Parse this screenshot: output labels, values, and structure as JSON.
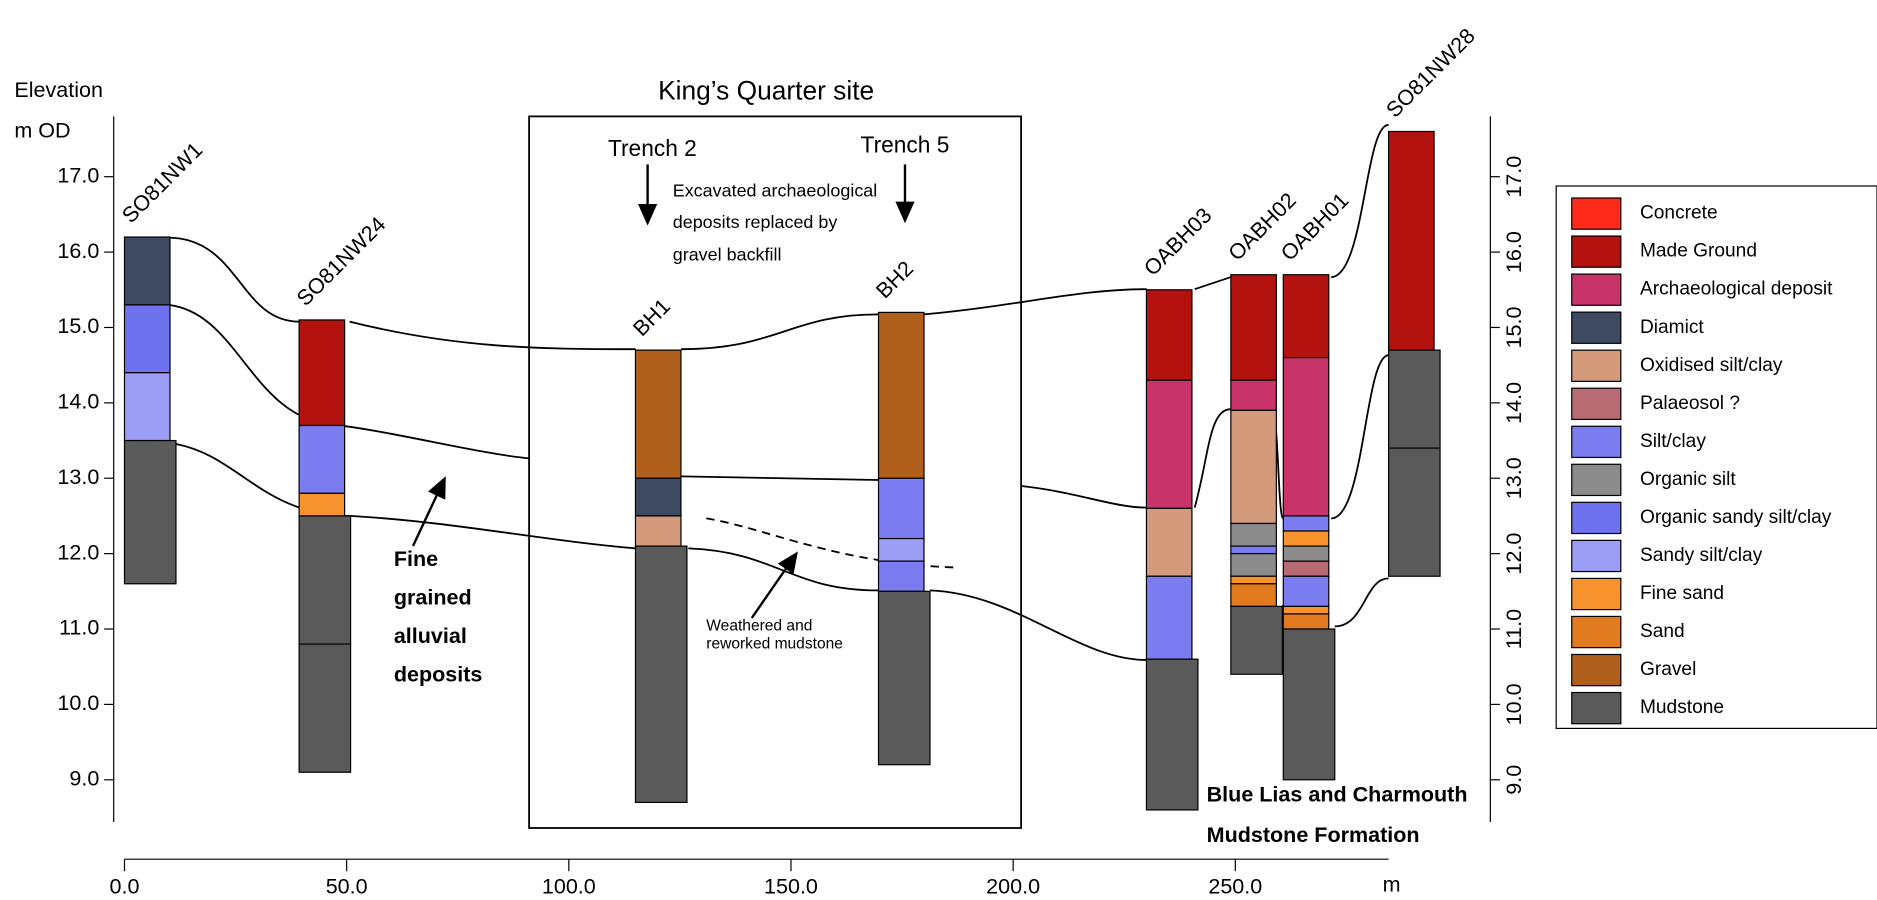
{
  "y_axis": {
    "title": [
      "Elevation",
      "m OD"
    ],
    "ylim": [
      8.44,
      17.8
    ],
    "yticks": [
      {
        "value": 9,
        "label": "9.0"
      },
      {
        "value": 10,
        "label": "10.0"
      },
      {
        "value": 11,
        "label": "11.0"
      },
      {
        "value": 12,
        "label": "12.0"
      },
      {
        "value": 13,
        "label": "13.0"
      },
      {
        "value": 14,
        "label": "14.0"
      },
      {
        "value": 15,
        "label": "15.0"
      },
      {
        "value": 16,
        "label": "16.0"
      },
      {
        "value": 17,
        "label": "17.0"
      }
    ],
    "y2lim": [
      8.44,
      17.8
    ],
    "y2ticks": [
      {
        "value": 9,
        "label": "9.0"
      },
      {
        "value": 10,
        "label": "10.0"
      },
      {
        "value": 11,
        "label": "11.0"
      },
      {
        "value": 12,
        "label": "12.0"
      },
      {
        "value": 13,
        "label": "13.0"
      },
      {
        "value": 14,
        "label": "14.0"
      },
      {
        "value": 15,
        "label": "15.0"
      },
      {
        "value": 16,
        "label": "16.0"
      },
      {
        "value": 17,
        "label": "17.0"
      }
    ]
  },
  "x_axis": {
    "xlim": [
      0,
      284.5
    ],
    "xticks": [
      {
        "value": 0,
        "label": "0.0"
      },
      {
        "value": 50,
        "label": "50.0"
      },
      {
        "value": 100,
        "label": "100.0"
      },
      {
        "value": 150,
        "label": "150.0"
      },
      {
        "value": 200,
        "label": "200.0"
      },
      {
        "value": 250,
        "label": "250.0"
      }
    ],
    "unit": "m"
  },
  "site": {
    "title": "King’s Quarter site",
    "trenches": [
      "Trench 2",
      "Trench 5"
    ],
    "note": [
      "Excavated archaeological",
      "deposits replaced by",
      "gravel backfill"
    ]
  },
  "boreholes": [
    {
      "name": "SO81NW1",
      "x": 0,
      "layers": [
        {
          "lithology": "Diamict",
          "top": 16.2,
          "bottom": 15.3
        },
        {
          "lithology": "Organic sandy silt/clay",
          "top": 15.3,
          "bottom": 14.4
        },
        {
          "lithology": "Sandy silt/clay",
          "top": 14.4,
          "bottom": 13.5
        },
        {
          "lithology": "Mudstone",
          "top": 13.5,
          "bottom": 11.6
        }
      ]
    },
    {
      "name": "SO81NW24",
      "x": 39.3,
      "layers": [
        {
          "lithology": "Made Ground",
          "top": 15.1,
          "bottom": 13.7
        },
        {
          "lithology": "Silt/clay",
          "top": 13.7,
          "bottom": 12.8
        },
        {
          "lithology": "Fine sand",
          "top": 12.8,
          "bottom": 12.5
        },
        {
          "lithology": "Mudstone",
          "top": 12.5,
          "bottom": 10.8
        },
        {
          "lithology": "Mudstone",
          "top": 10.8,
          "bottom": 9.1
        }
      ]
    },
    {
      "name": "BH1",
      "x": 115,
      "layers": [
        {
          "lithology": "Gravel",
          "top": 14.7,
          "bottom": 13.0
        },
        {
          "lithology": "Diamict",
          "top": 13.0,
          "bottom": 12.5
        },
        {
          "lithology": "Oxidised silt/clay",
          "top": 12.5,
          "bottom": 12.1
        },
        {
          "lithology": "Mudstone",
          "top": 12.1,
          "bottom": 8.7
        }
      ]
    },
    {
      "name": "BH2",
      "x": 169.7,
      "layers": [
        {
          "lithology": "Gravel",
          "top": 15.2,
          "bottom": 13.0
        },
        {
          "lithology": "Silt/clay",
          "top": 13.0,
          "bottom": 12.2
        },
        {
          "lithology": "Sandy silt/clay",
          "top": 12.2,
          "bottom": 11.9
        },
        {
          "lithology": "Silt/clay",
          "top": 11.9,
          "bottom": 11.5
        },
        {
          "lithology": "Mudstone",
          "top": 11.5,
          "bottom": 9.2
        }
      ]
    },
    {
      "name": "OABH03",
      "x": 230,
      "layers": [
        {
          "lithology": "Made Ground",
          "top": 15.5,
          "bottom": 14.3
        },
        {
          "lithology": "Archaeological deposit",
          "top": 14.3,
          "bottom": 12.6
        },
        {
          "lithology": "Oxidised silt/clay",
          "top": 12.6,
          "bottom": 11.7
        },
        {
          "lithology": "Silt/clay",
          "top": 11.7,
          "bottom": 10.6
        },
        {
          "lithology": "Mudstone",
          "top": 10.6,
          "bottom": 8.6
        }
      ]
    },
    {
      "name": "OABH02",
      "x": 249,
      "layers": [
        {
          "lithology": "Made Ground",
          "top": 15.7,
          "bottom": 14.3
        },
        {
          "lithology": "Archaeological deposit",
          "top": 14.3,
          "bottom": 13.9
        },
        {
          "lithology": "Oxidised silt/clay",
          "top": 13.9,
          "bottom": 12.4
        },
        {
          "lithology": "Organic silt",
          "top": 12.4,
          "bottom": 12.1
        },
        {
          "lithology": "Silt/clay",
          "top": 12.1,
          "bottom": 12.0
        },
        {
          "lithology": "Organic silt",
          "top": 12.0,
          "bottom": 11.7
        },
        {
          "lithology": "Fine sand",
          "top": 11.7,
          "bottom": 11.6
        },
        {
          "lithology": "Sand",
          "top": 11.6,
          "bottom": 11.3
        },
        {
          "lithology": "Mudstone",
          "top": 11.3,
          "bottom": 10.4
        }
      ]
    },
    {
      "name": "OABH01",
      "x": 260.8,
      "layers": [
        {
          "lithology": "Made Ground",
          "top": 15.7,
          "bottom": 14.6
        },
        {
          "lithology": "Archaeological deposit",
          "top": 14.6,
          "bottom": 12.5
        },
        {
          "lithology": "Silt/clay",
          "top": 12.5,
          "bottom": 12.3
        },
        {
          "lithology": "Fine sand",
          "top": 12.3,
          "bottom": 12.1
        },
        {
          "lithology": "Organic silt",
          "top": 12.1,
          "bottom": 11.9
        },
        {
          "lithology": "Palaeosol ?",
          "top": 11.9,
          "bottom": 11.7
        },
        {
          "lithology": "Silt/clay",
          "top": 11.7,
          "bottom": 11.3
        },
        {
          "lithology": "Fine sand",
          "top": 11.3,
          "bottom": 11.2
        },
        {
          "lithology": "Sand",
          "top": 11.2,
          "bottom": 11.0
        },
        {
          "lithology": "Mudstone",
          "top": 11.0,
          "bottom": 9.0
        }
      ]
    },
    {
      "name": "SO81NW28",
      "x": 284.5,
      "layers": [
        {
          "lithology": "Made Ground",
          "top": 17.6,
          "bottom": 14.7
        },
        {
          "lithology": "Mudstone",
          "top": 14.7,
          "bottom": 13.4
        },
        {
          "lithology": "Mudstone",
          "top": 13.4,
          "bottom": 11.7
        }
      ]
    }
  ],
  "annotations": {
    "alluvial": [
      "Fine",
      "grained",
      "alluvial",
      "deposits"
    ],
    "weathered": [
      "Weathered and",
      "reworked mudstone"
    ],
    "formation": [
      "Blue Lias and Charmouth",
      "Mudstone Formation"
    ]
  },
  "legend": [
    {
      "name": "Concrete",
      "color": "#ff2a1a"
    },
    {
      "name": "Made Ground",
      "color": "#b3120f"
    },
    {
      "name": "Archaeological deposit",
      "color": "#c8336a"
    },
    {
      "name": "Diamict",
      "color": "#3d4a62"
    },
    {
      "name": "Oxidised silt/clay",
      "color": "#d49a7c"
    },
    {
      "name": "Palaeosol ?",
      "color": "#b96b73"
    },
    {
      "name": "Silt/clay",
      "color": "#7a7cf0"
    },
    {
      "name": "Organic silt",
      "color": "#8c8c8c"
    },
    {
      "name": "Organic sandy silt/clay",
      "color": "#6f72ee"
    },
    {
      "name": "Sandy silt/clay",
      "color": "#9c9df5"
    },
    {
      "name": "Fine sand",
      "color": "#f7922c"
    },
    {
      "name": "Sand",
      "color": "#e27b1f"
    },
    {
      "name": "Gravel",
      "color": "#b0601c"
    },
    {
      "name": "Mudstone",
      "color": "#5a5a5a"
    }
  ]
}
